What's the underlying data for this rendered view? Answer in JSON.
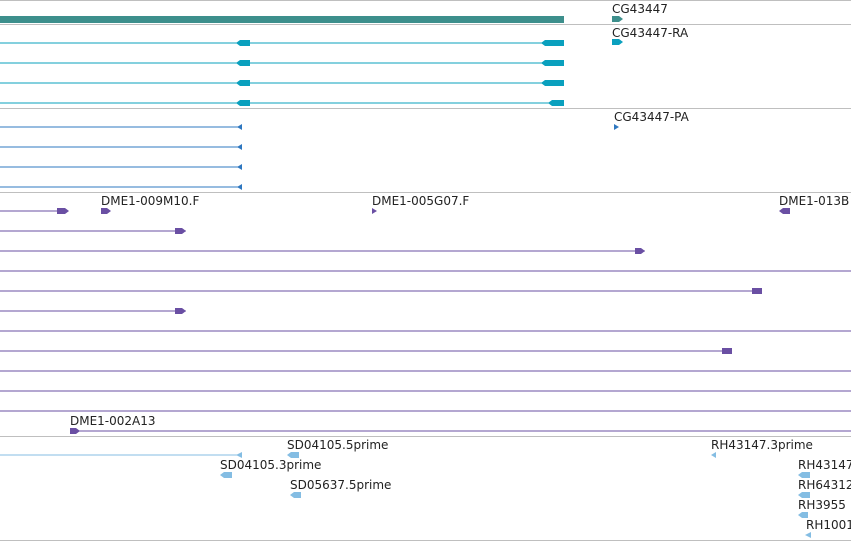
{
  "colors": {
    "gene": "#3d8f8c",
    "transcript": "#0aa0be",
    "protein": "#2f78c0",
    "clone": "#6a4fa3",
    "est": "#84bde3",
    "separator": "#bfbfbf"
  },
  "labels": {
    "gene": "CG43447",
    "transcript": "CG43447-RA",
    "protein": "CG43447-PA",
    "clone_a": "DME1-009M10.F",
    "clone_b": "DME1-005G07.F",
    "clone_c": "DME1-013B",
    "clone_d": "DME1-002A13",
    "est_1": "SD04105.5prime",
    "est_2": "RH43147.3prime",
    "est_3": "SD04105.3prime",
    "est_4": "RH43147",
    "est_5": "SD05637.5prime",
    "est_6": "RH64312",
    "est_7": "RH3955",
    "est_8": "RH1001"
  },
  "tracks": [
    {
      "name": "gene-track",
      "label": "gene"
    },
    {
      "name": "transcript-track",
      "label": "transcript"
    },
    {
      "name": "protein-track",
      "label": "protein"
    },
    {
      "name": "clone-track",
      "label": "clone"
    },
    {
      "name": "est-track",
      "label": "est"
    }
  ]
}
